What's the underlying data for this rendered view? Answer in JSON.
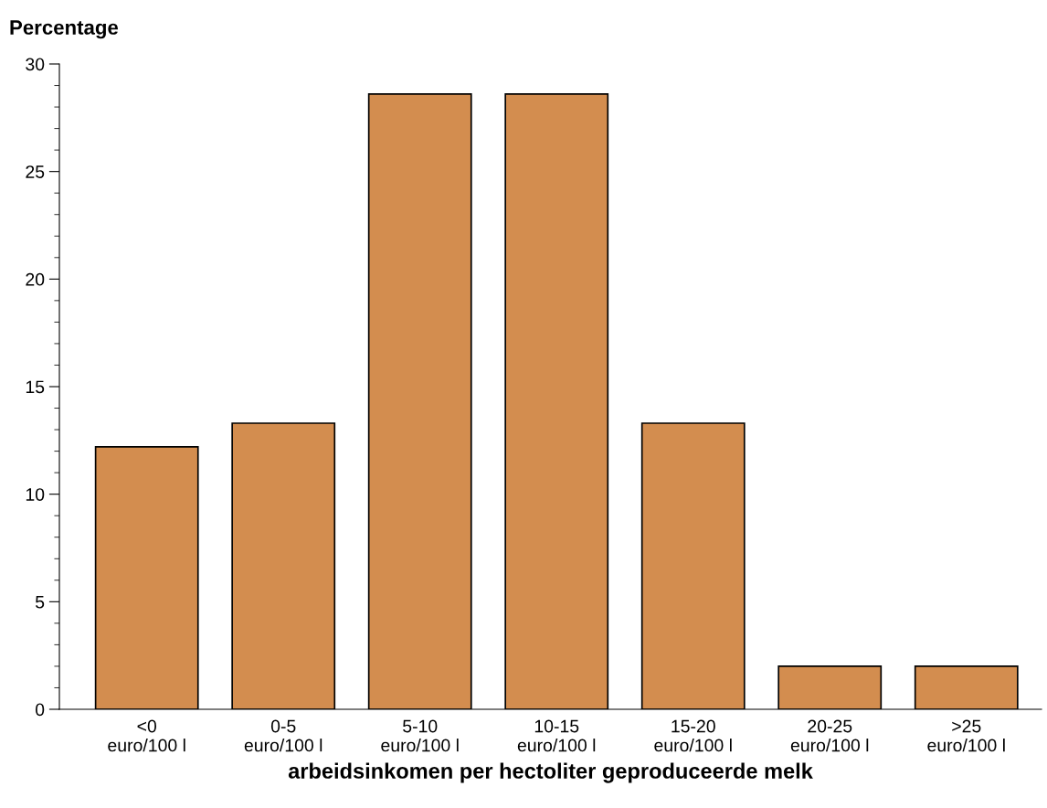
{
  "chart_data": {
    "type": "bar",
    "ylabel": "Percentage",
    "xlabel": "arbeidsinkomen per hectoliter geproduceerde melk",
    "categories": [
      "<0\neuro/100 l",
      "0-5\neuro/100 l",
      "5-10\neuro/100 l",
      "10-15\neuro/100 l",
      "15-20\neuro/100 l",
      "20-25\neuro/100 l",
      ">25\neuro/100 l"
    ],
    "values": [
      12.2,
      13.3,
      28.6,
      28.6,
      13.3,
      2.0,
      2.0
    ],
    "color": "#d38d4f",
    "ylim": [
      0,
      30
    ],
    "yticks": [
      0,
      5,
      10,
      15,
      20,
      25,
      30
    ],
    "grid": false,
    "legend": false
  }
}
